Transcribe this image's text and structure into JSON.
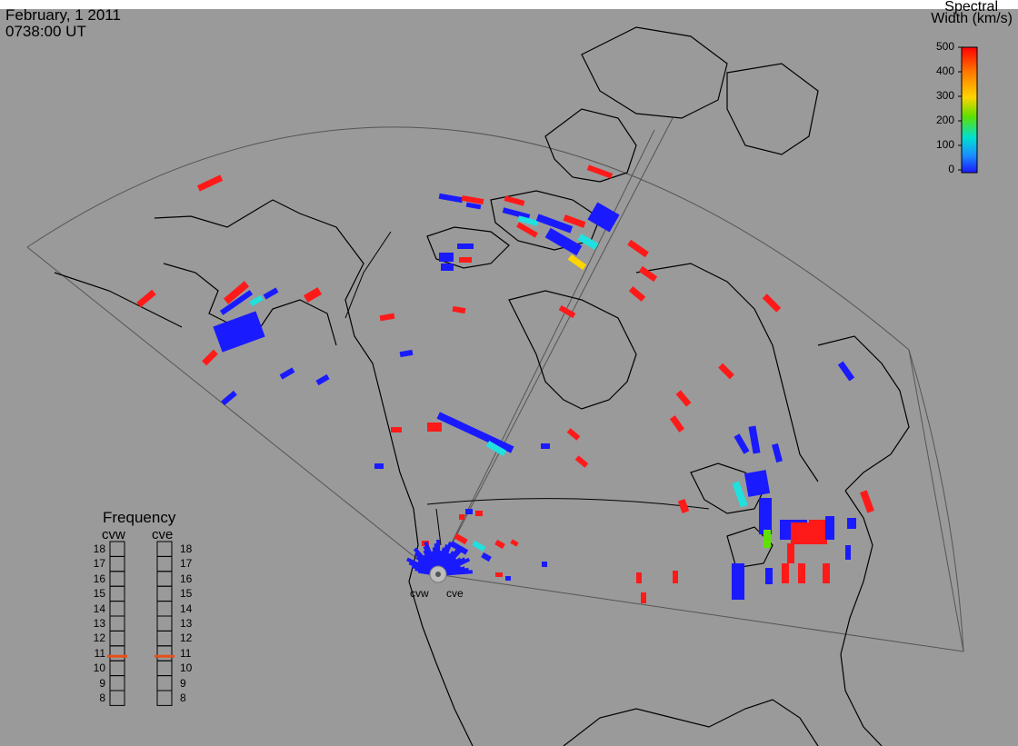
{
  "header": {
    "date": "February, 1 2011",
    "time": "0738:00 UT"
  },
  "colorbar": {
    "title_line1": "Spectral",
    "title_line2": "Width (km/s)",
    "ticks": [
      "500",
      "400",
      "300",
      "200",
      "100",
      "0"
    ],
    "colors": [
      "#ff0000",
      "#ff8a00",
      "#ffd400",
      "#6fe000",
      "#00e0c8",
      "#1a90ff",
      "#1a1aff"
    ]
  },
  "frequency": {
    "title": "Frequency",
    "radars": [
      {
        "name": "cvw",
        "value": 10.8
      },
      {
        "name": "cve",
        "value": 10.8
      }
    ],
    "scale": [
      "18",
      "17",
      "16",
      "15",
      "14",
      "13",
      "12",
      "11",
      "10",
      "9",
      "8"
    ],
    "marker_color": "#e8501a"
  },
  "sites": [
    "cvw",
    "cve"
  ],
  "colors": {
    "background": "#9a9a9a",
    "low_width": "#1a1aff",
    "high_width": "#ff1a1a",
    "mid_width": "#20e0e0"
  }
}
